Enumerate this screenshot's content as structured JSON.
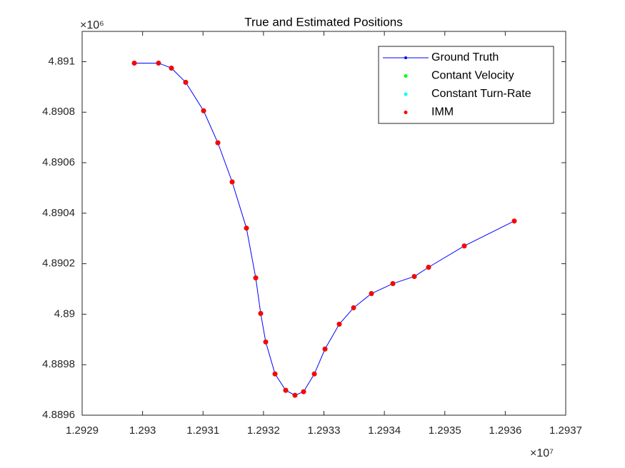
{
  "chart_data": {
    "type": "scatter",
    "title": "True and Estimated Positions",
    "x_exponent": "×10⁷",
    "y_exponent": "×10⁶",
    "x": [
      1.2929863,
      1.2930264,
      1.2930477,
      1.2930713,
      1.2931009,
      1.2931245,
      1.2931482,
      1.2931718,
      1.2931872,
      1.2931954,
      1.2932037,
      1.2932191,
      1.2932368,
      1.2932521,
      1.2932663,
      1.2932841,
      1.2933018,
      1.2933254,
      1.293349,
      1.2933786,
      1.293414,
      1.2934495,
      1.2934731,
      1.2935322,
      1.2936149
    ],
    "series": [
      {
        "name": "Ground Truth",
        "color": "#0000ff",
        "line": true,
        "values": [
          4.8909944,
          4.8909944,
          4.8909746,
          4.8909183,
          4.8908056,
          4.8906789,
          4.8905239,
          4.8903408,
          4.8901437,
          4.8900028,
          4.8898901,
          4.8897634,
          4.8896986,
          4.8896789,
          4.889693,
          4.8897634,
          4.889862,
          4.8899606,
          4.8900254,
          4.8900817,
          4.8901211,
          4.8901493,
          4.8901859,
          4.8902704,
          4.890369
        ]
      },
      {
        "name": "Contant Velocity",
        "color": "#00ff00",
        "line": false,
        "values": [
          4.8909944,
          4.8909944,
          4.8909746,
          4.8909183,
          4.8908056,
          4.8906789,
          4.8905239,
          4.8903408,
          4.8901437,
          4.8900028,
          4.8898901,
          4.8897634,
          4.8896986,
          4.8896789,
          4.889693,
          4.8897634,
          4.889862,
          4.8899606,
          4.8900254,
          4.8900817,
          4.8901211,
          4.8901493,
          4.8901859,
          4.8902704,
          4.890369
        ]
      },
      {
        "name": "Constant Turn-Rate",
        "color": "#00ffff",
        "line": false,
        "values": [
          4.8909944,
          4.8909944,
          4.8909746,
          4.8909183,
          4.8908056,
          4.8906789,
          4.8905239,
          4.8903408,
          4.8901437,
          4.8900028,
          4.8898901,
          4.8897634,
          4.8896986,
          4.8896789,
          4.889693,
          4.8897634,
          4.889862,
          4.8899606,
          4.8900254,
          4.8900817,
          4.8901211,
          4.8901493,
          4.8901859,
          4.8902704,
          4.890369
        ]
      },
      {
        "name": "IMM",
        "color": "#ff0000",
        "line": false,
        "values": [
          4.8909944,
          4.8909944,
          4.8909746,
          4.8909183,
          4.8908056,
          4.8906789,
          4.8905239,
          4.8903408,
          4.8901437,
          4.8900028,
          4.8898901,
          4.8897634,
          4.8896986,
          4.8896789,
          4.889693,
          4.8897634,
          4.889862,
          4.8899606,
          4.8900254,
          4.8900817,
          4.8901211,
          4.8901493,
          4.8901859,
          4.8902704,
          4.890369
        ]
      }
    ],
    "xlim": [
      1.2929,
      1.2937
    ],
    "xticks": [
      1.2929,
      1.293,
      1.2931,
      1.2932,
      1.2933,
      1.2934,
      1.2935,
      1.2936,
      1.2937
    ],
    "ylim": [
      4.8896,
      4.89112
    ],
    "yticks": [
      4.8896,
      4.8898,
      4.89,
      4.8902,
      4.8904,
      4.8906,
      4.8908,
      4.891
    ],
    "grid": false,
    "legend": "top-right"
  }
}
